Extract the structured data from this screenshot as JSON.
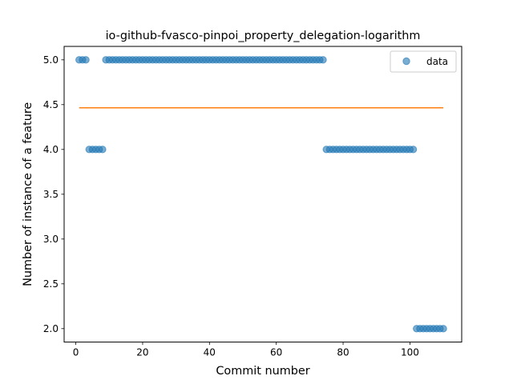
{
  "chart_data": {
    "type": "scatter",
    "title": "io-github-fvasco-pinpoi_property_delegation-logarithm",
    "xlabel": "Commit number",
    "ylabel": "Number of instance of a feature",
    "xlim": [
      -3.5,
      115.5
    ],
    "ylim": [
      1.85,
      5.15
    ],
    "xticks": [
      0,
      20,
      40,
      60,
      80,
      100
    ],
    "xtick_labels": [
      "0",
      "20",
      "40",
      "60",
      "80",
      "100"
    ],
    "yticks": [
      2.0,
      2.5,
      3.0,
      3.5,
      4.0,
      4.5,
      5.0
    ],
    "ytick_labels": [
      "2.0",
      "2.5",
      "3.0",
      "3.5",
      "4.0",
      "4.5",
      "5.0"
    ],
    "grid": false,
    "legend": {
      "placement": "top-right",
      "entries": [
        "data"
      ]
    },
    "series": [
      {
        "name": "data",
        "kind": "scatter",
        "color": "#1f77b4",
        "segments": [
          {
            "x_start": 1,
            "x_end": 3,
            "y": 5
          },
          {
            "x_start": 4,
            "x_end": 8,
            "y": 4
          },
          {
            "x_start": 9,
            "x_end": 74,
            "y": 5
          },
          {
            "x_start": 75,
            "x_end": 101,
            "y": 4
          },
          {
            "x_start": 102,
            "x_end": 110,
            "y": 2
          }
        ]
      },
      {
        "kind": "line",
        "color": "#ff7f0e",
        "x": [
          1,
          110
        ],
        "y": [
          4.465,
          4.465
        ]
      }
    ]
  }
}
